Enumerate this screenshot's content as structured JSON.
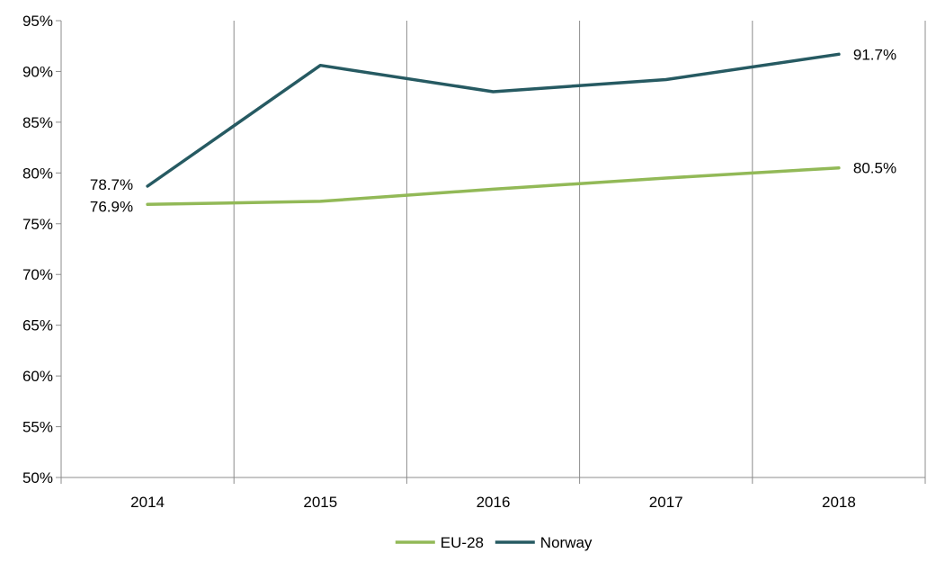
{
  "chart_data": {
    "type": "line",
    "title": "",
    "xlabel": "",
    "ylabel": "",
    "categories": [
      "2014",
      "2015",
      "2016",
      "2017",
      "2018"
    ],
    "ylim": [
      50,
      95
    ],
    "yticks": [
      50,
      55,
      60,
      65,
      70,
      75,
      80,
      85,
      90,
      95
    ],
    "ytick_labels": [
      "50%",
      "55%",
      "60%",
      "65%",
      "70%",
      "75%",
      "80%",
      "85%",
      "90%",
      "95%"
    ],
    "vertical_gridlines": true,
    "horizontal_gridlines": false,
    "legend_position": "bottom-center",
    "series": [
      {
        "name": "EU-28",
        "color": "#92b957",
        "values": [
          76.9,
          77.2,
          78.4,
          79.5,
          80.5
        ],
        "labels": [
          {
            "index": 0,
            "text": "76.9%",
            "placement": "left-below"
          },
          {
            "index": 4,
            "text": "80.5%",
            "placement": "right"
          }
        ]
      },
      {
        "name": "Norway",
        "color": "#265a62",
        "values": [
          78.7,
          90.6,
          88.0,
          89.2,
          91.7
        ],
        "labels": [
          {
            "index": 0,
            "text": "78.7%",
            "placement": "left-above"
          },
          {
            "index": 4,
            "text": "91.7%",
            "placement": "right"
          }
        ]
      }
    ]
  }
}
